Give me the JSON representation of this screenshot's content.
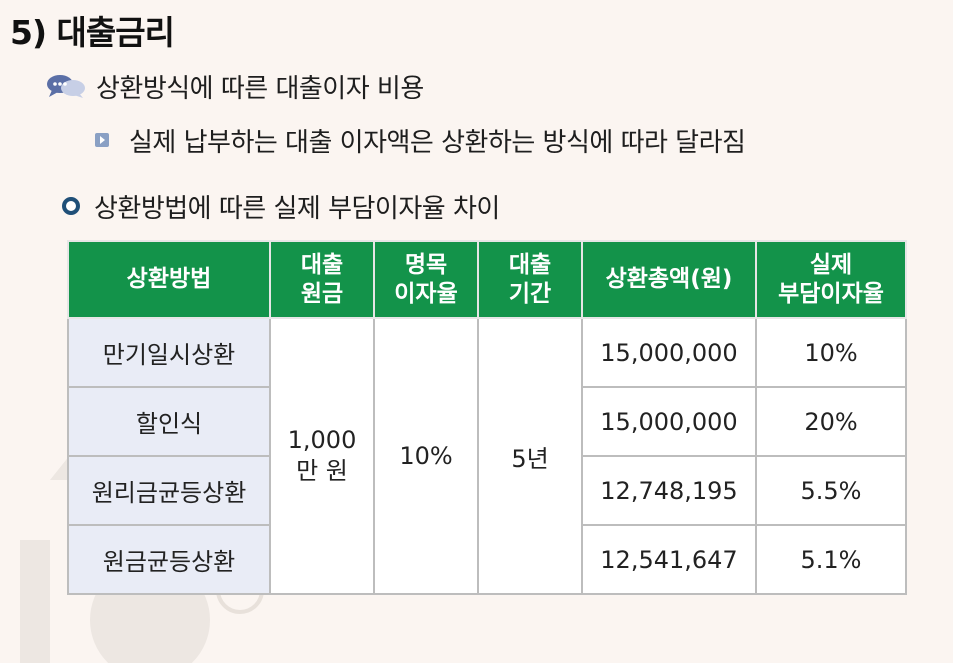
{
  "page": {
    "title": "5) 대출금리",
    "heading": "상환방식에 따른 대출이자 비용",
    "sub_point": "실제 납부하는 대출 이자액은 상환하는 방식에 따라 달라짐",
    "section": "상환방법에 따른 실제 부담이자율 차이"
  },
  "table": {
    "headers": {
      "method": "상환방법",
      "principal": "대출\n원금",
      "nominal_rate": "명목\n이자율",
      "period": "대출\n기간",
      "total": "상환총액(원)",
      "effective_rate": "실제\n부담이자율"
    },
    "principal": "1,000\n만 원",
    "nominal_rate": "10%",
    "period": "5년",
    "rows": [
      {
        "method": "만기일시상환",
        "total": "15,000,000",
        "effective_rate": "10%"
      },
      {
        "method": "할인식",
        "total": "15,000,000",
        "effective_rate": "20%"
      },
      {
        "method": "원리금균등상환",
        "total": "12,748,195",
        "effective_rate": "5.5%"
      },
      {
        "method": "원금균등상환",
        "total": "12,541,647",
        "effective_rate": "5.1%"
      }
    ]
  },
  "colors": {
    "header_green": "#13934a",
    "method_cell": "#e9ecf6",
    "background": "#fbf5f1",
    "bullet_navy": "#1f4f78"
  },
  "icons": {
    "heading": "speech-bubbles-icon",
    "sub_point": "square-arrow-bullet-icon",
    "section": "ring-bullet-icon"
  }
}
